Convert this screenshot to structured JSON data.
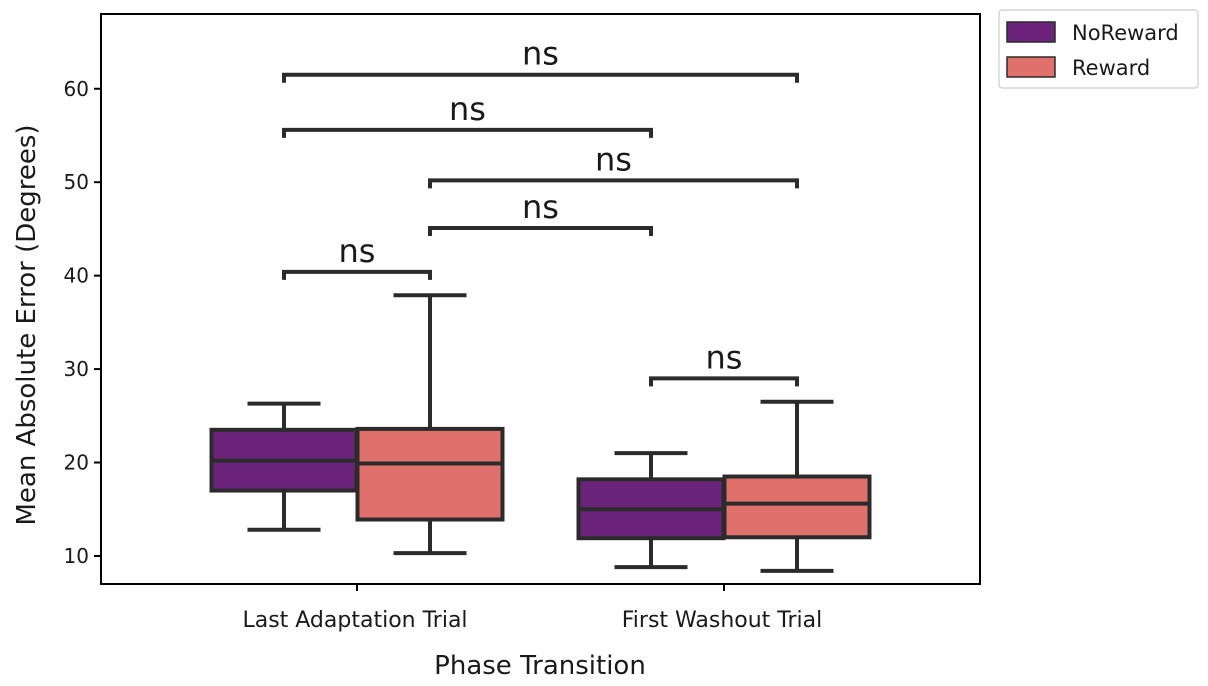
{
  "chart_data": {
    "type": "box",
    "xlabel": "Phase Transition",
    "ylabel": "Mean Absolute Error (Degrees)",
    "categories": [
      "Last Adaptation Trial",
      "First Washout Trial"
    ],
    "ylim": [
      7,
      68
    ],
    "yticks": [
      10,
      20,
      30,
      40,
      50,
      60
    ],
    "grid": false,
    "legend_position": "outside-top-right",
    "series": [
      {
        "name": "NoReward",
        "color": "#6b2479",
        "boxes": [
          {
            "whisker_low": 12.8,
            "q1": 17.0,
            "median": 20.2,
            "q3": 23.5,
            "whisker_high": 26.3
          },
          {
            "whisker_low": 8.8,
            "q1": 11.9,
            "median": 15.0,
            "q3": 18.2,
            "whisker_high": 21.0
          }
        ]
      },
      {
        "name": "Reward",
        "color": "#e0706c",
        "boxes": [
          {
            "whisker_low": 10.3,
            "q1": 13.9,
            "median": 19.9,
            "q3": 23.6,
            "whisker_high": 37.9
          },
          {
            "whisker_low": 8.4,
            "q1": 12.0,
            "median": 15.6,
            "q3": 18.5,
            "whisker_high": 26.5
          }
        ]
      }
    ],
    "significance": [
      {
        "from": [
          0,
          0
        ],
        "to": [
          0,
          1
        ],
        "label": "ns",
        "y": 40.4
      },
      {
        "from": [
          1,
          0
        ],
        "to": [
          1,
          1
        ],
        "label": "ns",
        "y": 29.0
      },
      {
        "from": [
          0,
          1
        ],
        "to": [
          1,
          0
        ],
        "label": "ns",
        "y": 45.1
      },
      {
        "from": [
          0,
          1
        ],
        "to": [
          1,
          1
        ],
        "label": "ns",
        "y": 50.2
      },
      {
        "from": [
          0,
          0
        ],
        "to": [
          1,
          0
        ],
        "label": "ns",
        "y": 55.6
      },
      {
        "from": [
          0,
          0
        ],
        "to": [
          1,
          1
        ],
        "label": "ns",
        "y": 61.5
      }
    ]
  }
}
